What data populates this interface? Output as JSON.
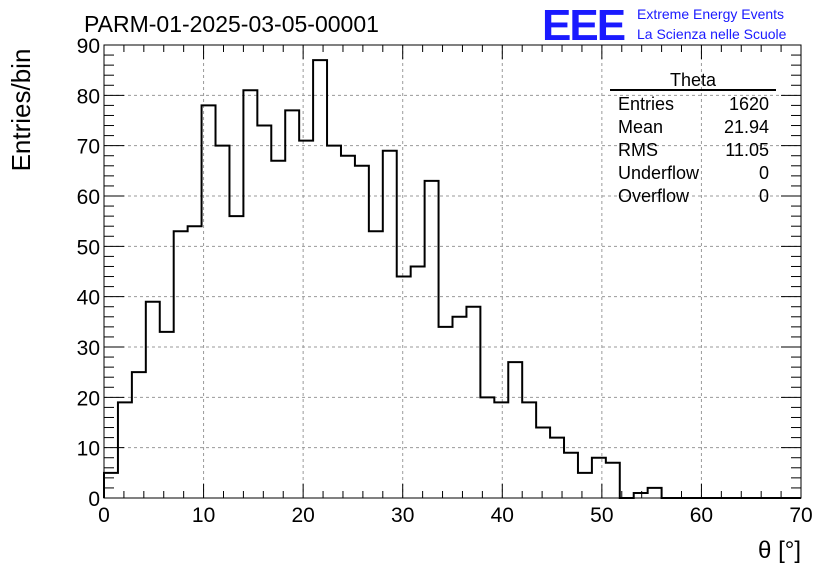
{
  "chart_data": {
    "type": "bar",
    "title": "PARM-01-2025-03-05-00001",
    "xlabel": "θ [°]",
    "ylabel": "Entries/bin",
    "xlim": [
      0,
      70
    ],
    "ylim": [
      0,
      90
    ],
    "x_ticks": [
      "0",
      "10",
      "20",
      "30",
      "40",
      "50",
      "60",
      "70"
    ],
    "y_ticks": [
      "0",
      "10",
      "20",
      "30",
      "40",
      "50",
      "60",
      "70",
      "80",
      "90"
    ],
    "bin_width": 1.4,
    "values": [
      5,
      19,
      25,
      39,
      33,
      53,
      54,
      78,
      70,
      56,
      81,
      74,
      67,
      77,
      71,
      87,
      70,
      68,
      66,
      53,
      69,
      44,
      46,
      63,
      34,
      36,
      38,
      20,
      19,
      27,
      19,
      14,
      12,
      9,
      5,
      8,
      7,
      0,
      1,
      2,
      0,
      0,
      0,
      0,
      0,
      0,
      0,
      0,
      0,
      0
    ],
    "grid": true,
    "stats": {
      "title": "Theta",
      "rows": [
        {
          "label": "Entries",
          "value": "1620"
        },
        {
          "label": "Mean",
          "value": "21.94"
        },
        {
          "label": "RMS",
          "value": "11.05"
        },
        {
          "label": "Underflow",
          "value": "0"
        },
        {
          "label": "Overflow",
          "value": "0"
        }
      ]
    }
  },
  "logo": {
    "mark": "EEE",
    "line1": "Extreme Energy Events",
    "line2": "La Scienza nelle Scuole",
    "color": "#1a1aff"
  }
}
